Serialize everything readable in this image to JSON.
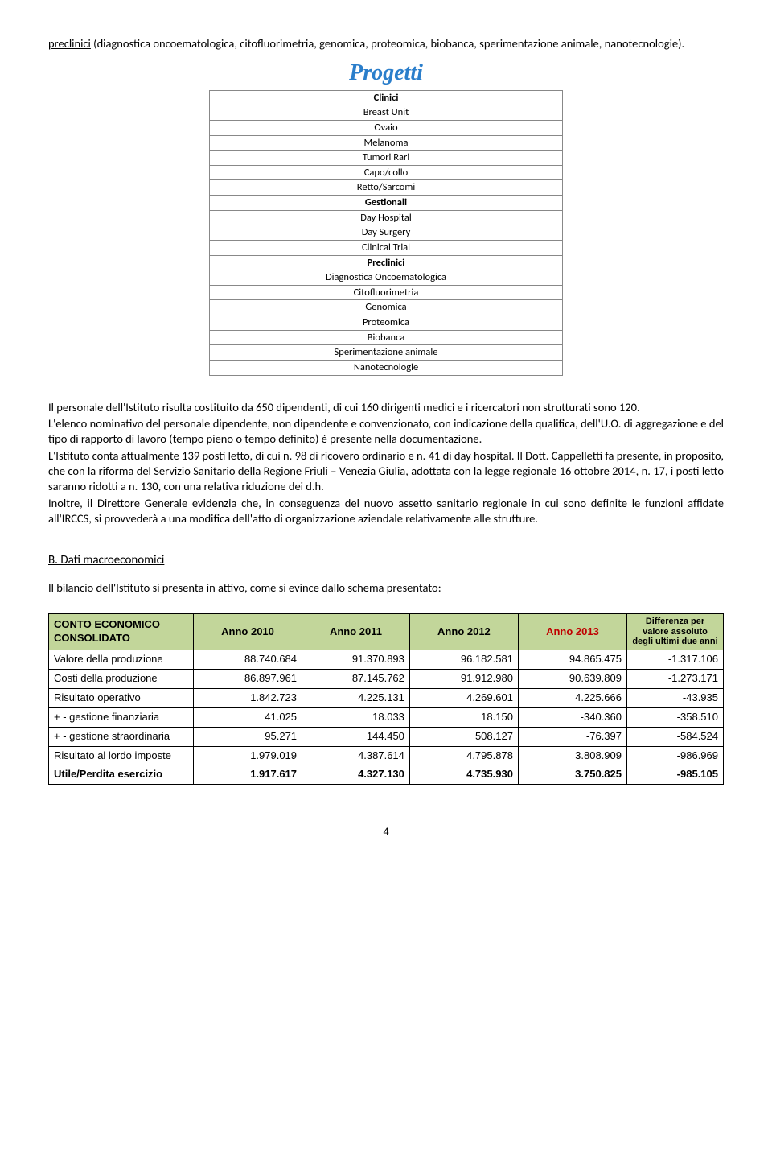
{
  "intro": {
    "underlined": "preclinici",
    "rest": " (diagnostica oncoematologica, citofluorimetria, genomica, proteomica, biobanca, sperimentazione animale, nanotecnologie)."
  },
  "progetti": {
    "title": "Progetti",
    "rows": [
      {
        "label": "Clinici",
        "bold": true
      },
      {
        "label": "Breast Unit",
        "bold": false
      },
      {
        "label": "Ovaio",
        "bold": false
      },
      {
        "label": "Melanoma",
        "bold": false
      },
      {
        "label": "Tumori Rari",
        "bold": false
      },
      {
        "label": "Capo/collo",
        "bold": false
      },
      {
        "label": "Retto/Sarcomi",
        "bold": false
      },
      {
        "label": "Gestionali",
        "bold": true
      },
      {
        "label": "Day Hospital",
        "bold": false
      },
      {
        "label": "Day Surgery",
        "bold": false
      },
      {
        "label": "Clinical Trial",
        "bold": false
      },
      {
        "label": "Preclinici",
        "bold": true
      },
      {
        "label": "Diagnostica Oncoematologica",
        "bold": false
      },
      {
        "label": "Citofluorimetria",
        "bold": false
      },
      {
        "label": "Genomica",
        "bold": false
      },
      {
        "label": "Proteomica",
        "bold": false
      },
      {
        "label": "Biobanca",
        "bold": false
      },
      {
        "label": "Sperimentazione animale",
        "bold": false
      },
      {
        "label": "Nanotecnologie",
        "bold": false
      }
    ]
  },
  "paragraphs": {
    "p1": "Il personale dell'Istituto risulta costituito da 650 dipendenti, di cui 160 dirigenti medici e i ricercatori non strutturati sono 120.",
    "p2": "L'elenco nominativo del personale dipendente, non dipendente e convenzionato, con indicazione della qualifica, dell'U.O. di aggregazione e del tipo di rapporto di lavoro (tempo pieno o tempo definito) è presente nella documentazione.",
    "p3": "L'Istituto conta attualmente 139 posti letto, di cui n. 98 di ricovero ordinario e n. 41 di day hospital. Il Dott. Cappelletti fa presente, in proposito, che con la riforma del Servizio Sanitario della Regione Friuli – Venezia Giulia, adottata con la legge regionale 16 ottobre 2014, n. 17, i posti letto saranno ridotti a n. 130, con una relativa riduzione dei d.h.",
    "p4": "Inoltre, il Direttore Generale evidenzia che, in conseguenza del nuovo assetto sanitario regionale in cui sono definite le funzioni affidate all'IRCCS, si provvederà a una modifica dell'atto di organizzazione aziendale relativamente alle strutture."
  },
  "section_b": {
    "heading": "B. Dati macroeconomici",
    "intro": "Il bilancio dell'Istituto si presenta in attivo, come si evince dallo schema presentato:"
  },
  "econ_table": {
    "headers": {
      "col0": "CONTO ECONOMICO CONSOLIDATO",
      "col1": "Anno 2010",
      "col2": "Anno 2011",
      "col3": "Anno 2012",
      "col4": "Anno 2013",
      "col5": "Differenza per valore assoluto degli ultimi due anni"
    },
    "rows": [
      {
        "label": "Valore della produzione",
        "c1": "88.740.684",
        "c2": "91.370.893",
        "c3": "96.182.581",
        "c4": "94.865.475",
        "c5": "-1.317.106",
        "bold": false
      },
      {
        "label": "Costi della produzione",
        "c1": "86.897.961",
        "c2": "87.145.762",
        "c3": "91.912.980",
        "c4": "90.639.809",
        "c5": "-1.273.171",
        "bold": false
      },
      {
        "label": "Risultato operativo",
        "c1": "1.842.723",
        "c2": "4.225.131",
        "c3": "4.269.601",
        "c4": "4.225.666",
        "c5": "-43.935",
        "bold": false
      },
      {
        "label": "+ - gestione finanziaria",
        "c1": "41.025",
        "c2": "18.033",
        "c3": "18.150",
        "c4": "-340.360",
        "c5": "-358.510",
        "bold": false
      },
      {
        "label": "+ - gestione straordinaria",
        "c1": "95.271",
        "c2": "144.450",
        "c3": "508.127",
        "c4": "-76.397",
        "c5": "-584.524",
        "bold": false
      },
      {
        "label": "Risultato al lordo imposte",
        "c1": "1.979.019",
        "c2": "4.387.614",
        "c3": "4.795.878",
        "c4": "3.808.909",
        "c5": "-986.969",
        "bold": false
      },
      {
        "label": "Utile/Perdita esercizio",
        "c1": "1.917.617",
        "c2": "4.327.130",
        "c3": "4.735.930",
        "c4": "3.750.825",
        "c5": "-985.105",
        "bold": true
      }
    ]
  },
  "page_number": "4"
}
